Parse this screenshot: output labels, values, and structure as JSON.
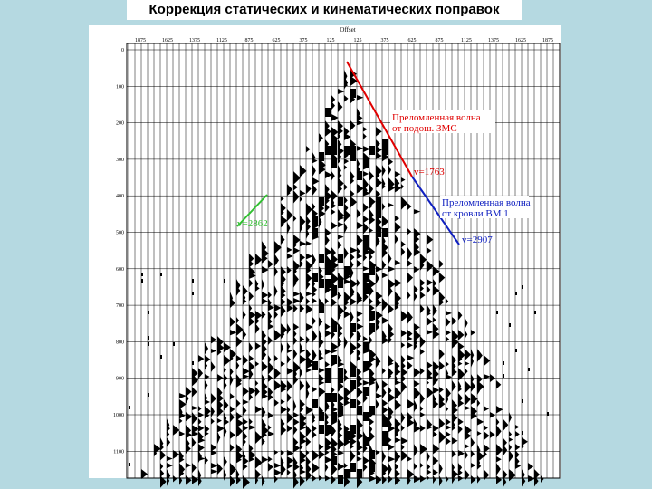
{
  "header": {
    "title": "Коррекция статических и кинематических поправок"
  },
  "figure": {
    "offset_title": "Offset",
    "offset_labels": [
      "1875",
      "1625",
      "1375",
      "1125",
      "875",
      "625",
      "375",
      "125",
      "125",
      "375",
      "625",
      "875",
      "1125",
      "1375",
      "1625",
      "1875"
    ],
    "time_labels": [
      "0",
      "100",
      "200",
      "300",
      "400",
      "500",
      "600",
      "700",
      "800",
      "900",
      "1000",
      "1100"
    ],
    "annotations": {
      "red_label": [
        "Преломленная волна",
        "от подош. ЗМС"
      ],
      "red_velocity": "v=1763",
      "blue_label": [
        "Преломленная волна",
        "от кровли ВМ 1"
      ],
      "blue_velocity": "v=2907",
      "green_velocity": "v=2862"
    }
  }
}
